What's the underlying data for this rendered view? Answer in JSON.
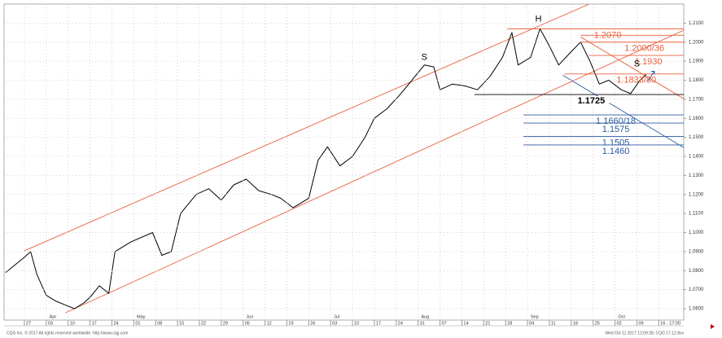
{
  "chart_data": {
    "type": "line",
    "x": [
      -6,
      -3,
      0,
      2,
      4,
      7,
      10,
      13,
      16,
      19,
      21,
      24,
      27,
      29,
      34,
      41,
      44,
      47,
      50,
      55,
      59,
      63,
      67,
      71,
      75,
      79,
      82,
      86,
      91,
      94,
      97,
      101,
      105,
      109,
      112,
      116,
      120,
      124,
      128,
      131,
      133,
      137,
      141,
      145,
      149,
      153,
      156,
      158,
      162,
      165,
      168,
      171,
      175,
      178,
      181,
      184,
      187,
      191,
      194,
      197,
      199
    ],
    "series": [
      {
        "color": "#000000",
        "values": [
          1.079,
          1.083,
          1.087,
          1.09,
          1.078,
          1.067,
          1.064,
          1.062,
          1.06,
          1.063,
          1.066,
          1.072,
          1.068,
          1.09,
          1.095,
          1.1,
          1.088,
          1.09,
          1.11,
          1.12,
          1.123,
          1.117,
          1.125,
          1.128,
          1.122,
          1.12,
          1.118,
          1.113,
          1.118,
          1.138,
          1.145,
          1.135,
          1.14,
          1.15,
          1.16,
          1.165,
          1.172,
          1.18,
          1.188,
          1.187,
          1.175,
          1.178,
          1.177,
          1.175,
          1.182,
          1.192,
          1.205,
          1.188,
          1.192,
          1.207,
          1.198,
          1.188,
          1.195,
          1.2,
          1.19,
          1.178,
          1.18,
          1.175,
          1.173,
          1.18,
          1.183
        ]
      }
    ],
    "xlim": [
      -6.5,
      211
    ],
    "ylim": [
      1.054,
      1.22
    ],
    "xticks": [
      {
        "value": 0,
        "label": "27"
      },
      {
        "value": 7,
        "label": "03"
      },
      {
        "value": 14,
        "label": "10"
      },
      {
        "value": 21,
        "label": "17"
      },
      {
        "value": 28,
        "label": "24"
      },
      {
        "value": 35,
        "label": "01"
      },
      {
        "value": 42,
        "label": "08"
      },
      {
        "value": 49,
        "label": "15"
      },
      {
        "value": 56,
        "label": "22"
      },
      {
        "value": 63,
        "label": "29"
      },
      {
        "value": 70,
        "label": "05"
      },
      {
        "value": 77,
        "label": "12"
      },
      {
        "value": 84,
        "label": "19"
      },
      {
        "value": 91,
        "label": "26"
      },
      {
        "value": 98,
        "label": "03"
      },
      {
        "value": 105,
        "label": "10"
      },
      {
        "value": 112,
        "label": "17"
      },
      {
        "value": 119,
        "label": "24"
      },
      {
        "value": 126,
        "label": "31"
      },
      {
        "value": 133,
        "label": "07"
      },
      {
        "value": 140,
        "label": "14"
      },
      {
        "value": 147,
        "label": "21"
      },
      {
        "value": 154,
        "label": "28"
      },
      {
        "value": 161,
        "label": "04"
      },
      {
        "value": 168,
        "label": "11"
      },
      {
        "value": 175,
        "label": "18"
      },
      {
        "value": 182,
        "label": "25"
      },
      {
        "value": 189,
        "label": "02"
      },
      {
        "value": 196,
        "label": "09"
      },
      {
        "value": 203,
        "label": "16 - 17:00"
      }
    ],
    "months": [
      {
        "value": 8,
        "label": "Apr"
      },
      {
        "value": 36,
        "label": "May"
      },
      {
        "value": 71,
        "label": "Jun"
      },
      {
        "value": 99,
        "label": "Jul"
      },
      {
        "value": 127,
        "label": "Aug"
      },
      {
        "value": 162,
        "label": "Sep"
      },
      {
        "value": 190,
        "label": "Oct"
      }
    ],
    "yticks": [
      {
        "value": 1.06,
        "label": "1.0600"
      },
      {
        "value": 1.07,
        "label": "1.0700"
      },
      {
        "value": 1.08,
        "label": "1.0800"
      },
      {
        "value": 1.09,
        "label": "1.0900"
      },
      {
        "value": 1.1,
        "label": "1.1000"
      },
      {
        "value": 1.11,
        "label": "1.1100"
      },
      {
        "value": 1.12,
        "label": "1.1200"
      },
      {
        "value": 1.13,
        "label": "1.1300"
      },
      {
        "value": 1.14,
        "label": "1.1400"
      },
      {
        "value": 1.15,
        "label": "1.1500"
      },
      {
        "value": 1.16,
        "label": "1.1600"
      },
      {
        "value": 1.17,
        "label": "1.1700"
      },
      {
        "value": 1.18,
        "label": "1.1800"
      },
      {
        "value": 1.19,
        "label": "1.1900"
      },
      {
        "value": 1.2,
        "label": "1.2000"
      },
      {
        "value": 1.21,
        "label": "1.2100"
      }
    ],
    "grid": true,
    "trendlines": [
      {
        "color": "#e8603c",
        "x": [
          0,
          180.6
        ],
        "y": [
          1.0904,
          1.2199
        ]
      },
      {
        "color": "#e8603c",
        "x": [
          13.1,
          212
        ],
        "y": [
          1.0578,
          1.207
        ]
      },
      {
        "color": "#e8603c",
        "x": [
          178,
          212
        ],
        "y": [
          1.2027,
          1.1693
        ]
      },
      {
        "color": "#2c5aa0",
        "x": [
          172.3,
          212
        ],
        "y": [
          1.1826,
          1.1436
        ]
      }
    ],
    "levels": [
      {
        "label": "1.2070",
        "values": [
          1.207
        ],
        "x_start": 154.5,
        "color": "#e8603c"
      },
      {
        "label": "1.2000/36",
        "values": [
          1.2036,
          1.2
        ],
        "x_start": 178,
        "color": "#e8603c"
      },
      {
        "label": "1.1930",
        "values": [
          1.193
        ],
        "x_start": 180.6,
        "color": "#e8603c"
      },
      {
        "label": "1.1833/80",
        "values": [
          1.1833
        ],
        "x_start": 172.8,
        "color": "#e8603c"
      },
      {
        "label": "1.1725",
        "values": [
          1.1725
        ],
        "x_start": 144,
        "color": "#000000"
      },
      {
        "label": "1.1660/18",
        "values": [
          1.1618
        ],
        "x_start": 159.7,
        "color": "#2c5aa0"
      },
      {
        "label": "1.1575",
        "values": [
          1.1575
        ],
        "x_start": 159.7,
        "color": "#2c5aa0"
      },
      {
        "label": "1.1505",
        "values": [
          1.1505
        ],
        "x_start": 159.7,
        "color": "#2c5aa0"
      },
      {
        "label": "1.1460",
        "values": [
          1.146
        ],
        "x_start": 159.7,
        "color": "#2c5aa0"
      }
    ],
    "annotations": [
      {
        "text": "S",
        "x": 128,
        "y": 1.192
      },
      {
        "text": "H",
        "x": 164.5,
        "y": 1.212
      },
      {
        "text": "S",
        "x": 196,
        "y": 1.1885
      }
    ],
    "footer_left": "CQG Inc. © 2017 All rights reserved worldwide. http://www.cqg.com",
    "footer_right": "Wed Oct 11 2017 12:09:28, CQG 17.12.8xx"
  }
}
